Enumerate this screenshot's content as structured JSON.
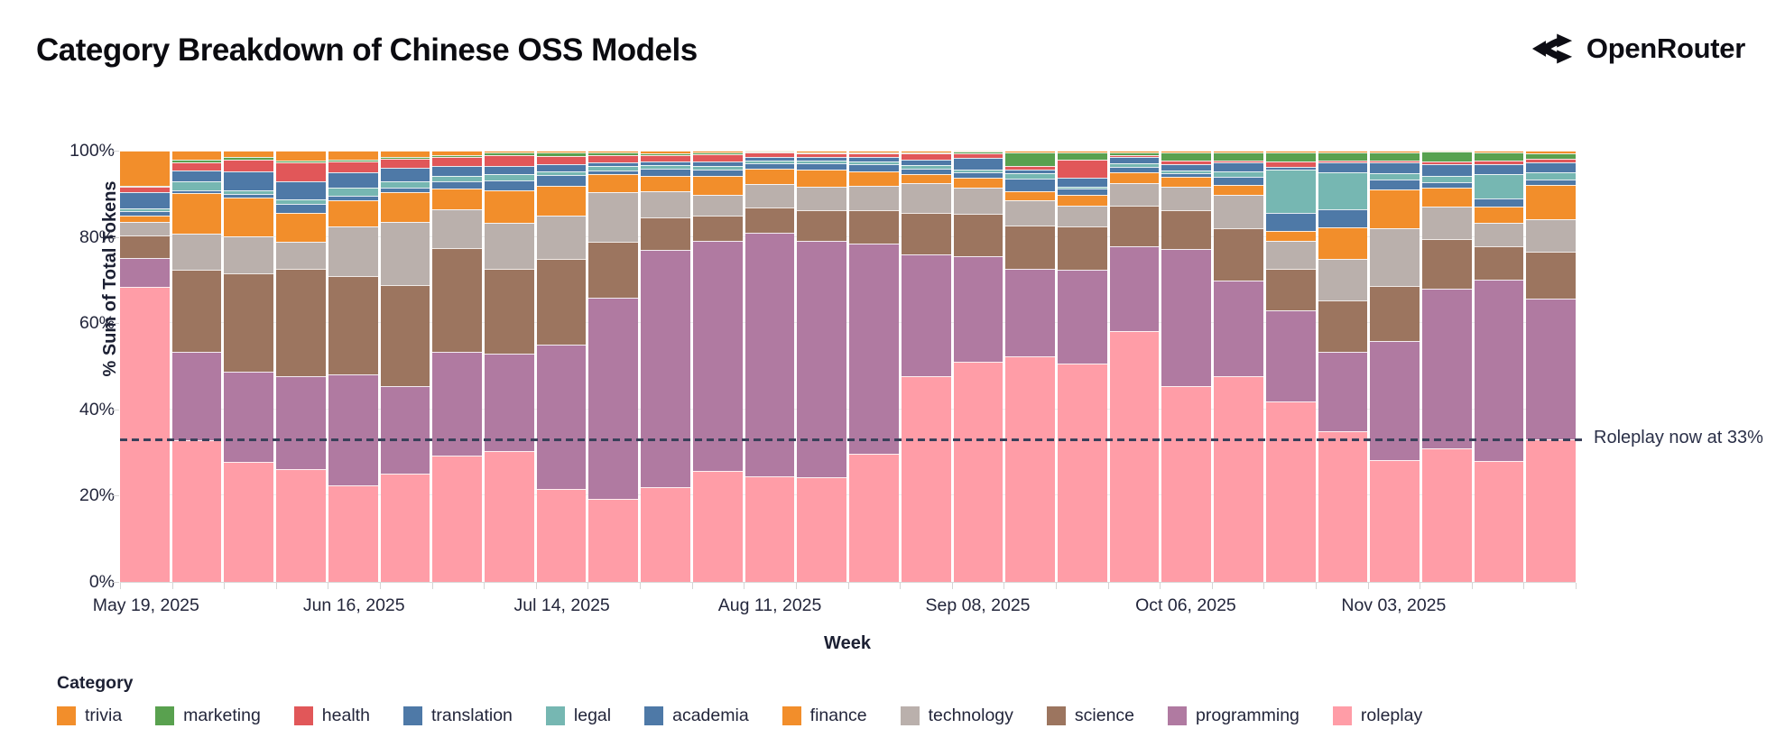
{
  "title": "Category Breakdown of Chinese OSS Models",
  "brand": {
    "name": "OpenRouter",
    "icon": "openrouter-fork-icon",
    "color": "#0d0d14"
  },
  "y_axis": {
    "title": "% Sum of Total Tokens",
    "ticks": [
      {
        "label": "100%",
        "pct": 100
      },
      {
        "label": "80%",
        "pct": 80
      },
      {
        "label": "60%",
        "pct": 60
      },
      {
        "label": "40%",
        "pct": 40
      },
      {
        "label": "20%",
        "pct": 20
      },
      {
        "label": "0%",
        "pct": 0
      }
    ]
  },
  "x_axis": {
    "title": "Week",
    "labeled_ticks": [
      {
        "index": 0,
        "label": "May 19, 2025"
      },
      {
        "index": 4,
        "label": "Jun 16, 2025"
      },
      {
        "index": 8,
        "label": "Jul 14, 2025"
      },
      {
        "index": 12,
        "label": "Aug 11, 2025"
      },
      {
        "index": 16,
        "label": "Sep 08, 2025"
      },
      {
        "index": 20,
        "label": "Oct 06, 2025"
      },
      {
        "index": 24,
        "label": "Nov 03, 2025"
      }
    ]
  },
  "annotation": {
    "text": "Roleplay now at 33%",
    "value_pct": 33,
    "line_color": "#3a405a"
  },
  "legend": {
    "title": "Category",
    "items": [
      {
        "label": "trivia",
        "color": "#F28E2B"
      },
      {
        "label": "marketing",
        "color": "#59A14F"
      },
      {
        "label": "health",
        "color": "#E15759"
      },
      {
        "label": "translation",
        "color": "#4E79A7"
      },
      {
        "label": "legal",
        "color": "#76B7B2"
      },
      {
        "label": "academia",
        "color": "#4E79A7"
      },
      {
        "label": "finance",
        "color": "#F28E2B"
      },
      {
        "label": "technology",
        "color": "#BAB0AC"
      },
      {
        "label": "science",
        "color": "#9C755F"
      },
      {
        "label": "programming",
        "color": "#B07AA1"
      },
      {
        "label": "roleplay",
        "color": "#FF9DA7"
      }
    ]
  },
  "chart_data": {
    "type": "bar",
    "subtype": "stacked-100pct",
    "title": "Category Breakdown of Chinese OSS Models",
    "xlabel": "Week",
    "ylabel": "% Sum of Total Tokens",
    "ylim": [
      0,
      100
    ],
    "grid": "horizontal-faint",
    "legend_position": "bottom-left",
    "x": [
      "May 19, 2025",
      "May 26, 2025",
      "Jun 02, 2025",
      "Jun 09, 2025",
      "Jun 16, 2025",
      "Jun 23, 2025",
      "Jun 30, 2025",
      "Jul 07, 2025",
      "Jul 14, 2025",
      "Jul 21, 2025",
      "Jul 28, 2025",
      "Aug 04, 2025",
      "Aug 11, 2025",
      "Aug 18, 2025",
      "Aug 25, 2025",
      "Sep 01, 2025",
      "Sep 08, 2025",
      "Sep 15, 2025",
      "Sep 22, 2025",
      "Sep 29, 2025",
      "Oct 06, 2025",
      "Oct 13, 2025",
      "Oct 20, 2025",
      "Oct 27, 2025",
      "Nov 03, 2025",
      "Nov 10, 2025",
      "Nov 17, 2025",
      "Nov 24, 2025"
    ],
    "stack_order": "bottom-to-top",
    "series": [
      {
        "name": "roleplay",
        "color": "#FF9DA7",
        "values": [
          68.5,
          32.8,
          27.8,
          26.2,
          22.4,
          25.1,
          29.3,
          30.3,
          21.6,
          19.2,
          22.0,
          25.7,
          24.5,
          24.3,
          29.7,
          47.7,
          51.1,
          52.3,
          50.6,
          58.2,
          45.3,
          47.8,
          41.9,
          35.0,
          28.2,
          31.0,
          28.0,
          33.0
        ]
      },
      {
        "name": "programming",
        "color": "#B07AA1",
        "values": [
          6.6,
          20.5,
          21.0,
          21.5,
          25.7,
          20.3,
          24.1,
          22.6,
          33.5,
          46.8,
          55.0,
          53.3,
          56.5,
          54.8,
          48.8,
          28.3,
          24.5,
          20.3,
          21.8,
          19.6,
          31.8,
          22.0,
          21.1,
          18.3,
          27.6,
          37.0,
          42.1,
          32.7
        ]
      },
      {
        "name": "science",
        "color": "#9C755F",
        "values": [
          5.2,
          19.0,
          22.7,
          24.9,
          22.8,
          23.4,
          24.0,
          19.8,
          19.8,
          12.8,
          7.5,
          5.9,
          5.8,
          7.0,
          7.8,
          9.6,
          9.8,
          10.0,
          10.0,
          9.4,
          9.0,
          12.2,
          9.6,
          11.9,
          12.8,
          11.5,
          7.7,
          10.9
        ]
      },
      {
        "name": "technology",
        "color": "#BAB0AC",
        "values": [
          3.2,
          8.4,
          8.6,
          6.3,
          11.5,
          14.7,
          9.1,
          10.5,
          10.1,
          11.5,
          6.1,
          4.8,
          5.5,
          5.5,
          5.5,
          6.9,
          6.1,
          5.9,
          4.8,
          5.3,
          5.6,
          7.7,
          6.5,
          9.8,
          13.5,
          7.5,
          5.4,
          7.5
        ]
      },
      {
        "name": "finance",
        "color": "#F28E2B",
        "values": [
          1.4,
          9.4,
          9.0,
          6.7,
          6.1,
          6.8,
          4.8,
          7.5,
          6.8,
          4.2,
          3.5,
          4.5,
          3.5,
          4.0,
          3.5,
          2.1,
          2.2,
          2.1,
          2.5,
          2.5,
          2.3,
          2.4,
          2.3,
          7.3,
          9.0,
          4.4,
          3.8,
          7.9
        ]
      },
      {
        "name": "academia",
        "color": "#4E79A7",
        "values": [
          1.1,
          0.8,
          0.9,
          2.1,
          1.0,
          1.2,
          1.7,
          2.5,
          2.6,
          1.0,
          1.7,
          1.4,
          1.2,
          1.4,
          1.5,
          1.2,
          1.2,
          2.9,
          1.5,
          1.2,
          0.8,
          1.9,
          4.2,
          4.2,
          2.2,
          1.3,
          1.9,
          1.4
        ]
      },
      {
        "name": "legal",
        "color": "#76B7B2",
        "values": [
          0.6,
          2.1,
          0.9,
          1.0,
          1.9,
          1.3,
          1.2,
          1.4,
          0.9,
          0.9,
          0.8,
          0.8,
          0.7,
          0.7,
          0.8,
          0.9,
          0.7,
          1.3,
          0.5,
          0.8,
          0.6,
          1.2,
          10.0,
          8.4,
          1.5,
          1.5,
          5.6,
          1.5
        ]
      },
      {
        "name": "translation",
        "color": "#4E79A7",
        "values": [
          3.8,
          2.5,
          4.4,
          4.2,
          3.6,
          3.2,
          2.2,
          1.8,
          1.5,
          0.9,
          1.0,
          1.2,
          0.9,
          0.9,
          1.0,
          1.2,
          2.8,
          0.9,
          2.0,
          1.5,
          1.4,
          2.1,
          0.7,
          2.4,
          2.4,
          2.6,
          2.4,
          2.4
        ]
      },
      {
        "name": "health",
        "color": "#E15759",
        "values": [
          1.3,
          1.9,
          2.7,
          4.4,
          2.5,
          2.1,
          2.2,
          2.5,
          1.9,
          1.7,
          1.4,
          1.5,
          0.9,
          0.8,
          0.8,
          1.4,
          1.0,
          0.8,
          4.2,
          0.5,
          0.9,
          0.5,
          1.2,
          0.4,
          0.5,
          0.7,
          0.8,
          0.9
        ]
      },
      {
        "name": "marketing",
        "color": "#59A14F",
        "values": [
          0.2,
          0.6,
          0.5,
          0.4,
          0.5,
          0.5,
          0.4,
          0.6,
          1.0,
          0.6,
          0.4,
          0.5,
          0.2,
          0.3,
          0.3,
          0.3,
          0.3,
          3.2,
          1.8,
          0.7,
          2.0,
          1.9,
          2.2,
          1.9,
          2.0,
          2.2,
          2.0,
          1.1
        ]
      },
      {
        "name": "trivia",
        "color": "#F28E2B",
        "values": [
          8.1,
          2.0,
          1.5,
          2.3,
          2.0,
          1.4,
          1.0,
          0.5,
          0.3,
          0.4,
          0.6,
          0.4,
          0.3,
          0.3,
          0.3,
          0.4,
          0.3,
          0.3,
          0.3,
          0.3,
          0.3,
          0.3,
          0.3,
          0.4,
          0.3,
          0.3,
          0.3,
          0.7
        ]
      }
    ],
    "annotation": {
      "text": "Roleplay now at 33%",
      "y": 33,
      "style": "dashed-horizontal-line"
    }
  }
}
